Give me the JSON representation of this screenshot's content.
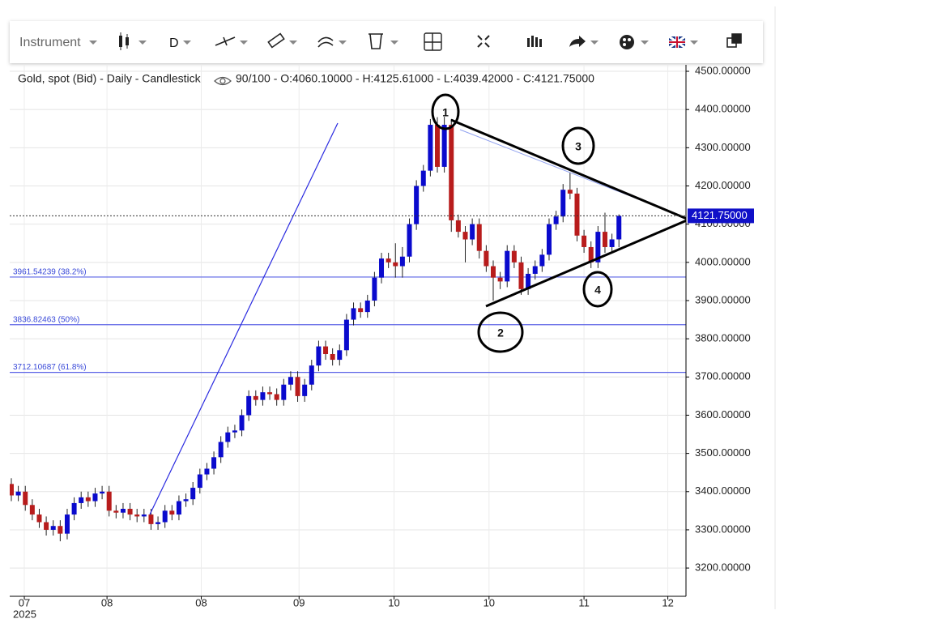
{
  "toolbar": {
    "instrument": "Instrument",
    "period": "D"
  },
  "chart_data": {
    "type": "candlestick",
    "title": "Gold, spot (Bid) - Daily - Candlestick",
    "subtitle": "90/100 - O:4060.10000 - H:4125.61000 - L:4039.42000 - C:4121.75000",
    "x": [
      0,
      1,
      2,
      3,
      4,
      5,
      6,
      7,
      8,
      9,
      10,
      11,
      12,
      13,
      14,
      15,
      16,
      17,
      18,
      19,
      20,
      21,
      22,
      23,
      24,
      25,
      26,
      27,
      28,
      29,
      30,
      31,
      32,
      33,
      34,
      35,
      36,
      37,
      38,
      39,
      40,
      41,
      42,
      43,
      44,
      45,
      46,
      47,
      48,
      49,
      50,
      51,
      52,
      53,
      54,
      55,
      56,
      57,
      58,
      59,
      60,
      61,
      62,
      63,
      64,
      65,
      66,
      67,
      68,
      69,
      70,
      71,
      72,
      73,
      74,
      75,
      76,
      77,
      78,
      79,
      80,
      81,
      82,
      83,
      84,
      85,
      86,
      87
    ],
    "open": [
      3420,
      3390,
      3400,
      3365,
      3340,
      3320,
      3300,
      3310,
      3290,
      3340,
      3370,
      3385,
      3375,
      3395,
      3400,
      3350,
      3345,
      3355,
      3340,
      3335,
      3340,
      3315,
      3320,
      3350,
      3340,
      3375,
      3380,
      3410,
      3445,
      3460,
      3490,
      3530,
      3555,
      3560,
      3600,
      3650,
      3640,
      3660,
      3655,
      3640,
      3680,
      3700,
      3650,
      3680,
      3730,
      3780,
      3760,
      3745,
      3770,
      3850,
      3880,
      3870,
      3900,
      3960,
      4010,
      4000,
      3990,
      4015,
      4100,
      4200,
      4240,
      4360,
      4250,
      4360,
      4110,
      4080,
      4060,
      4100,
      4030,
      3990,
      3960,
      3950,
      4030,
      4000,
      3930,
      3970,
      3990,
      4020,
      4100,
      4120,
      4190,
      4180,
      4070,
      4040,
      4000,
      4080,
      4040,
      4060.1
    ],
    "high": [
      3435,
      3415,
      3415,
      3380,
      3355,
      3335,
      3325,
      3325,
      3355,
      3385,
      3400,
      3400,
      3410,
      3415,
      3415,
      3365,
      3370,
      3370,
      3355,
      3355,
      3355,
      3335,
      3365,
      3365,
      3390,
      3395,
      3425,
      3460,
      3475,
      3505,
      3545,
      3570,
      3575,
      3615,
      3665,
      3665,
      3675,
      3675,
      3670,
      3695,
      3715,
      3715,
      3695,
      3745,
      3795,
      3795,
      3775,
      3785,
      3865,
      3895,
      3895,
      3915,
      3975,
      4025,
      4025,
      4050,
      4040,
      4115,
      4215,
      4255,
      4375,
      4380,
      4381,
      4375,
      4125,
      4095,
      4115,
      4115,
      4045,
      4005,
      3975,
      4045,
      4045,
      4015,
      3985,
      4005,
      4035,
      4115,
      4135,
      4205,
      4235,
      4195,
      4085,
      4055,
      4095,
      4130,
      4075,
      4125.61
    ],
    "low": [
      3375,
      3375,
      3350,
      3325,
      3305,
      3285,
      3285,
      3270,
      3275,
      3325,
      3355,
      3360,
      3360,
      3380,
      3335,
      3330,
      3330,
      3325,
      3320,
      3320,
      3300,
      3300,
      3305,
      3325,
      3325,
      3360,
      3365,
      3395,
      3430,
      3445,
      3475,
      3515,
      3540,
      3545,
      3585,
      3625,
      3625,
      3640,
      3625,
      3625,
      3665,
      3635,
      3635,
      3665,
      3715,
      3745,
      3730,
      3730,
      3755,
      3835,
      3855,
      3855,
      3885,
      3945,
      3985,
      3960,
      3960,
      4000,
      4085,
      4185,
      4225,
      4235,
      4235,
      4080,
      4065,
      4000,
      4045,
      4010,
      3975,
      3900,
      3930,
      3935,
      3985,
      3915,
      3915,
      3955,
      3975,
      4005,
      4085,
      4105,
      4165,
      4055,
      4025,
      3985,
      3985,
      4025,
      4025,
      4039.42
    ],
    "close": [
      3390,
      3400,
      3365,
      3340,
      3320,
      3300,
      3310,
      3290,
      3340,
      3370,
      3385,
      3375,
      3395,
      3400,
      3350,
      3345,
      3355,
      3340,
      3335,
      3340,
      3315,
      3320,
      3350,
      3340,
      3375,
      3380,
      3410,
      3445,
      3460,
      3490,
      3530,
      3555,
      3560,
      3600,
      3650,
      3640,
      3660,
      3655,
      3640,
      3680,
      3700,
      3650,
      3680,
      3730,
      3780,
      3760,
      3745,
      3770,
      3850,
      3880,
      3870,
      3900,
      3960,
      4010,
      4000,
      3990,
      4015,
      4100,
      4200,
      4240,
      4360,
      4250,
      4360,
      4110,
      4080,
      4060,
      4100,
      4030,
      3990,
      3960,
      3950,
      4030,
      4000,
      3930,
      3970,
      3990,
      4020,
      4100,
      4120,
      4190,
      4180,
      4070,
      4040,
      4000,
      4080,
      4040,
      4060.1,
      4121.75
    ],
    "up_color": "#0a0acd",
    "down_color": "#b81c1c",
    "xlim": [
      -0.23,
      96.6
    ],
    "xticks": [
      {
        "value": 1.86,
        "label": "07"
      },
      {
        "value": 13.7,
        "label": "08"
      },
      {
        "value": 27.2,
        "label": "08"
      },
      {
        "value": 41.2,
        "label": "09"
      },
      {
        "value": 54.8,
        "label": "10"
      },
      {
        "value": 68.4,
        "label": "10"
      },
      {
        "value": 82,
        "label": "11"
      },
      {
        "value": 94,
        "label": "12"
      }
    ],
    "year_label": "2025",
    "ylim": [
      3126,
      4517
    ],
    "yticks": [
      {
        "value": 3200,
        "label": "3200.00000"
      },
      {
        "value": 3300,
        "label": "3300.00000"
      },
      {
        "value": 3400,
        "label": "3400.00000"
      },
      {
        "value": 3500,
        "label": "3500.00000"
      },
      {
        "value": 3600,
        "label": "3600.00000"
      },
      {
        "value": 3700,
        "label": "3700.00000"
      },
      {
        "value": 3800,
        "label": "3800.00000"
      },
      {
        "value": 3900,
        "label": "3900.00000"
      },
      {
        "value": 4000,
        "label": "4000.00000"
      },
      {
        "value": 4100,
        "label": "4100.00000"
      },
      {
        "value": 4200,
        "label": "4200.00000"
      },
      {
        "value": 4300,
        "label": "4300.00000"
      },
      {
        "value": 4400,
        "label": "4400.00000"
      },
      {
        "value": 4500,
        "label": "4500.00000"
      }
    ],
    "grid": true,
    "fib_levels": [
      {
        "value": 3961.54239,
        "label": "3961.54239 (38.2%)"
      },
      {
        "value": 3836.82463,
        "label": "3836.82463 (50%)"
      },
      {
        "value": 3712.10687,
        "label": "3712.10687 (61.8%)"
      }
    ],
    "last_price": {
      "value": 4121.75,
      "label": "4121.75000"
    },
    "annotations": [
      "1",
      "2",
      "3",
      "4"
    ]
  }
}
